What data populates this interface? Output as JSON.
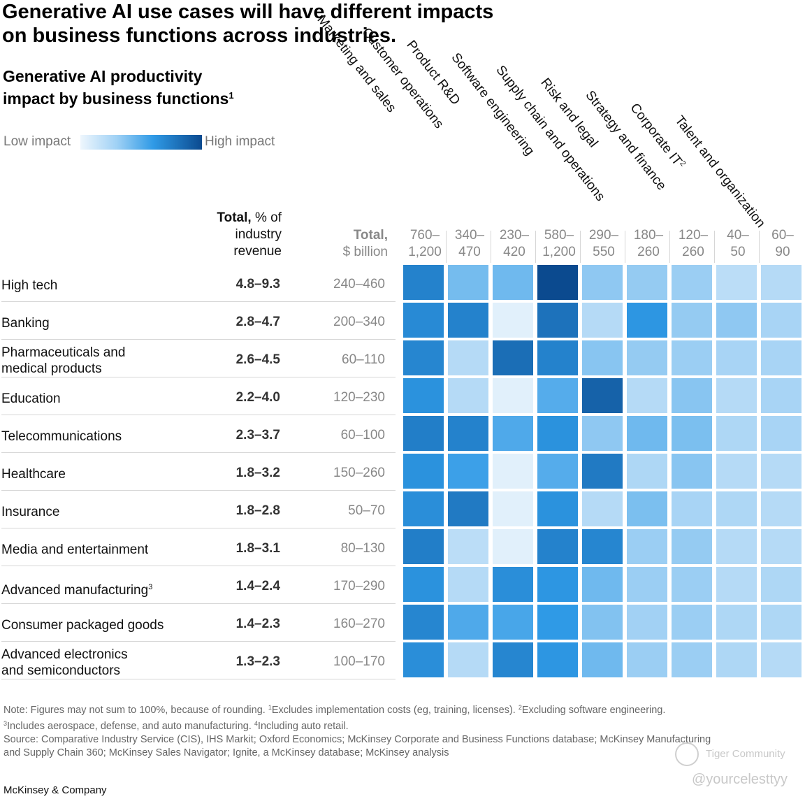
{
  "chart_data": {
    "type": "heatmap",
    "title": "Generative AI use cases will have different impacts on business functions across industries.",
    "title_lines": [
      "Generative AI use cases will have different impacts",
      "on business functions across industries."
    ],
    "subtitle_lines": [
      "Generative AI productivity",
      "impact by business functions"
    ],
    "subtitle_sup": "1",
    "legend": {
      "low": "Low impact",
      "high": "High impact"
    },
    "pct_header": {
      "bold": "Total,",
      "rest": " % of",
      "line2": "industry",
      "line3": "revenue"
    },
    "usd_header": {
      "line1": "Total,",
      "line2": "$ billion"
    },
    "columns": [
      {
        "name": "Marketing and sales",
        "sup": "",
        "range_line1": "760–",
        "range_line2": "1,200"
      },
      {
        "name": "Customer operations",
        "sup": "",
        "range_line1": "340–",
        "range_line2": "470"
      },
      {
        "name": "Product R&D",
        "sup": "",
        "range_line1": "230–",
        "range_line2": "420"
      },
      {
        "name": "Software engineering",
        "sup": "",
        "range_line1": "580–",
        "range_line2": "1,200"
      },
      {
        "name": "Supply chain and operations",
        "sup": "",
        "range_line1": "290–",
        "range_line2": "550"
      },
      {
        "name": "Risk and legal",
        "sup": "",
        "range_line1": "180–",
        "range_line2": "260"
      },
      {
        "name": "Strategy and finance",
        "sup": "",
        "range_line1": "120–",
        "range_line2": "260"
      },
      {
        "name": "Corporate IT",
        "sup": "2",
        "range_line1": "40–",
        "range_line2": "50"
      },
      {
        "name": "Talent and organization",
        "sup": "",
        "range_line1": "60–",
        "range_line2": "90"
      }
    ],
    "rows": [
      {
        "lines": [
          "High tech"
        ],
        "sup": "",
        "pct": "4.8–9.3",
        "usd": "240–460",
        "impact": [
          0.72,
          0.38,
          0.4,
          1.0,
          0.3,
          0.28,
          0.26,
          0.16,
          0.18
        ]
      },
      {
        "lines": [
          "Banking"
        ],
        "sup": "",
        "pct": "2.8–4.7",
        "usd": "200–340",
        "impact": [
          0.68,
          0.72,
          0.04,
          0.8,
          0.18,
          0.62,
          0.28,
          0.3,
          0.22
        ]
      },
      {
        "lines": [
          "Pharmaceuticals and",
          "medical products"
        ],
        "sup": "",
        "pct": "2.6–4.5",
        "usd": "60–110",
        "impact": [
          0.7,
          0.18,
          0.82,
          0.72,
          0.32,
          0.28,
          0.26,
          0.22,
          0.22
        ]
      },
      {
        "lines": [
          "Education"
        ],
        "sup": "",
        "pct": "2.2–4.0",
        "usd": "120–230",
        "impact": [
          0.64,
          0.18,
          0.04,
          0.48,
          0.88,
          0.18,
          0.32,
          0.18,
          0.22
        ]
      },
      {
        "lines": [
          "Telecommunications"
        ],
        "sup": "",
        "pct": "2.3–3.7",
        "usd": "60–100",
        "impact": [
          0.74,
          0.72,
          0.5,
          0.64,
          0.3,
          0.4,
          0.36,
          0.2,
          0.22
        ]
      },
      {
        "lines": [
          "Healthcare"
        ],
        "sup": "",
        "pct": "1.8–3.2",
        "usd": "150–260",
        "impact": [
          0.64,
          0.56,
          0.04,
          0.48,
          0.76,
          0.2,
          0.32,
          0.18,
          0.18
        ]
      },
      {
        "lines": [
          "Insurance"
        ],
        "sup": "",
        "pct": "1.8–2.8",
        "usd": "50–70",
        "impact": [
          0.66,
          0.76,
          0.04,
          0.64,
          0.18,
          0.36,
          0.22,
          0.2,
          0.18
        ]
      },
      {
        "lines": [
          "Media and entertainment"
        ],
        "sup": "",
        "pct": "1.8–3.1",
        "usd": "80–130",
        "impact": [
          0.74,
          0.16,
          0.04,
          0.72,
          0.7,
          0.26,
          0.28,
          0.18,
          0.18
        ]
      },
      {
        "lines": [
          "Advanced manufacturing"
        ],
        "sup": "3",
        "pct": "1.4–2.4",
        "usd": "170–290",
        "impact": [
          0.64,
          0.18,
          0.66,
          0.62,
          0.4,
          0.26,
          0.26,
          0.18,
          0.2
        ]
      },
      {
        "lines": [
          "Consumer packaged goods"
        ],
        "sup": "",
        "pct": "1.4–2.3",
        "usd": "160–270",
        "impact": [
          0.7,
          0.5,
          0.52,
          0.6,
          0.34,
          0.24,
          0.26,
          0.2,
          0.2
        ]
      },
      {
        "lines": [
          "Advanced electronics",
          "and semiconductors"
        ],
        "sup": "",
        "pct": "1.3–2.3",
        "usd": "100–170",
        "impact": [
          0.66,
          0.18,
          0.7,
          0.62,
          0.4,
          0.26,
          0.26,
          0.2,
          0.18
        ]
      }
    ],
    "colors": {
      "low": "#eef6fd",
      "mid": "#2f9ae6",
      "high": "#0b4a8f"
    }
  },
  "notes": {
    "line1_a": "Note: Figures may not sum to 100%, because of rounding. ",
    "sup1": "1",
    "line1_b": "Excludes implementation costs (eg, training, licenses). ",
    "sup2": "2",
    "line1_c": "Excluding software engineering.",
    "sup3": "3",
    "line2_a": "Includes aerospace, defense, and auto manufacturing. ",
    "sup4": "4",
    "line2_b": "Including auto retail.",
    "line3": "Source: Comparative Industry Service (CIS), IHS Markit; Oxford Economics; McKinsey Corporate and Business Functions database; McKinsey Manufacturing",
    "line4": "and Supply Chain 360; McKinsey Sales Navigator; Ignite, a McKinsey database; McKinsey analysis"
  },
  "footer": {
    "brand": "McKinsey & Company",
    "watermark_1": "Tiger Community",
    "watermark_2": "@yourcelesttyy"
  }
}
